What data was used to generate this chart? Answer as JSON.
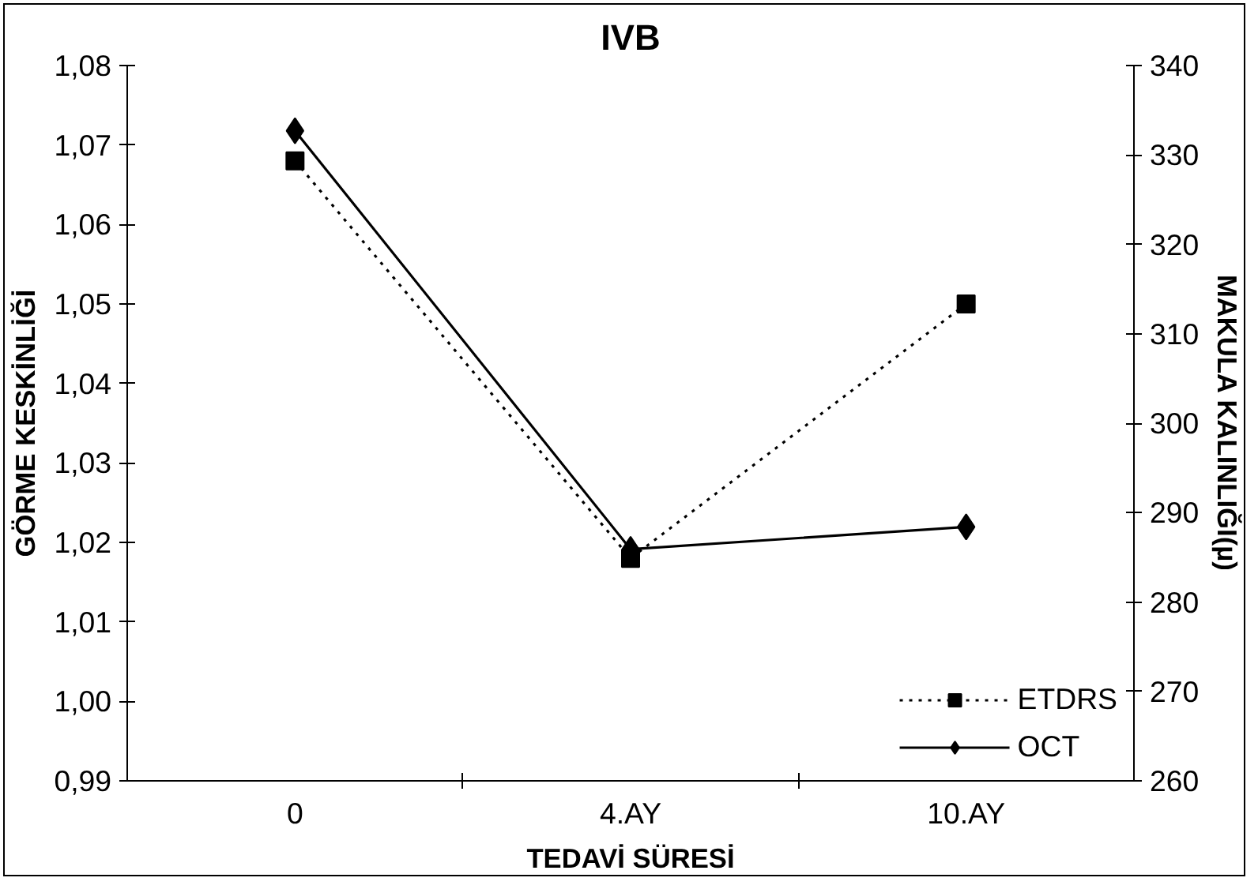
{
  "chart_data": {
    "type": "line",
    "title": "IVB",
    "xlabel": "TEDAVİ SÜRESİ",
    "ylabel": "GÖRME KESKİNLİĞİ",
    "y2label": "MAKULA KALINLIĞI(µ)",
    "categories": [
      "0",
      "4.AY",
      "10.AY"
    ],
    "series": [
      {
        "name": "ETDRS",
        "color": "#000000",
        "values": [
          1.068,
          1.018,
          1.05
        ],
        "marker": "square",
        "line_style": "dotted"
      },
      {
        "name": "OCT",
        "color": "#000000",
        "values": [
          332.7,
          285.9,
          288.4
        ],
        "marker": "diamond",
        "line_style": "solid",
        "axis": "y2"
      }
    ],
    "ylim": [
      0.99,
      1.08
    ],
    "yticks": [
      {
        "value": 0.99,
        "label": "0,99"
      },
      {
        "value": 1.0,
        "label": "1,00"
      },
      {
        "value": 1.01,
        "label": "1,01"
      },
      {
        "value": 1.02,
        "label": "1,02"
      },
      {
        "value": 1.03,
        "label": "1,03"
      },
      {
        "value": 1.04,
        "label": "1,04"
      },
      {
        "value": 1.05,
        "label": "1,05"
      },
      {
        "value": 1.06,
        "label": "1,06"
      },
      {
        "value": 1.07,
        "label": "1,07"
      },
      {
        "value": 1.08,
        "label": "1,08"
      }
    ],
    "y2lim": [
      260,
      340
    ],
    "y2ticks": [
      260,
      270,
      280,
      290,
      300,
      310,
      320,
      330,
      340
    ],
    "grid": false,
    "legend": "bottom right"
  }
}
